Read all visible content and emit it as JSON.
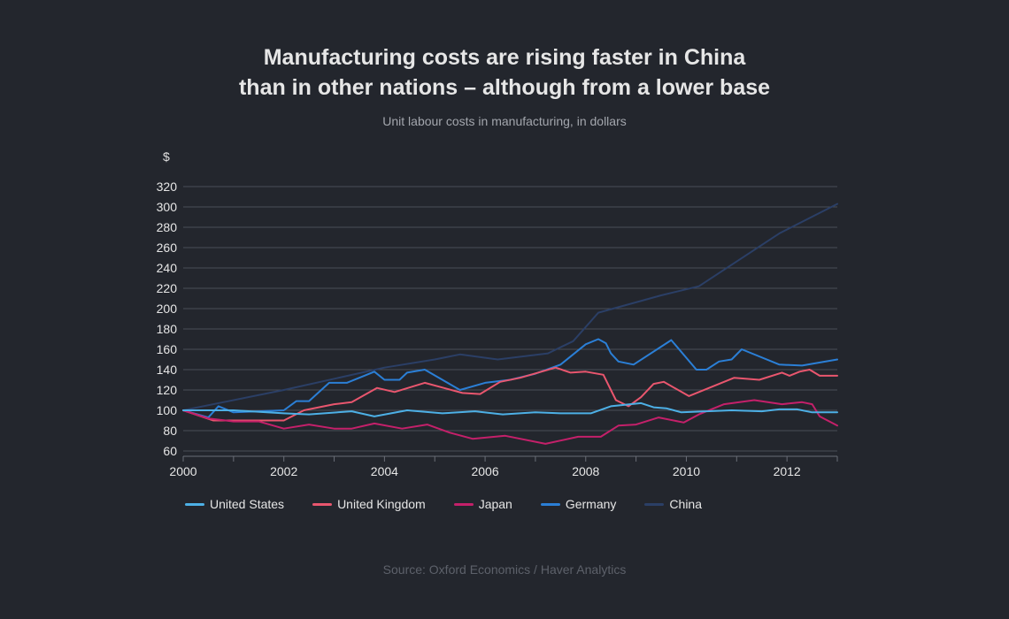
{
  "chart_data": {
    "type": "line",
    "title_lines": [
      "Manufacturing costs are rising faster in China",
      "than in other nations – although from a lower base"
    ],
    "subtitle": "Unit labour costs in manufacturing, in dollars",
    "ylabel": "$",
    "xlim": [
      2000,
      2013
    ],
    "ylim": [
      60,
      320
    ],
    "yticks": [
      60,
      80,
      100,
      120,
      140,
      160,
      180,
      200,
      220,
      240,
      260,
      280,
      300,
      320
    ],
    "xtick_labels": [
      "2000",
      "2002",
      "2004",
      "2006",
      "2008",
      "2010",
      "2012"
    ],
    "xtick_values": [
      2000,
      2002,
      2004,
      2006,
      2008,
      2010,
      2012
    ],
    "grid": true,
    "legend_placement": "bottom",
    "series": [
      {
        "name": "China",
        "color": "#2b3f66",
        "points": [
          [
            2000,
            100
          ],
          [
            2002,
            120
          ],
          [
            2004,
            142
          ],
          [
            2005,
            150
          ],
          [
            2005.5,
            155
          ],
          [
            2006.25,
            150
          ],
          [
            2007.25,
            156
          ],
          [
            2007.75,
            168
          ],
          [
            2008.25,
            196
          ],
          [
            2009.5,
            213
          ],
          [
            2010.25,
            222
          ],
          [
            2011.85,
            274
          ],
          [
            2013,
            303
          ]
        ]
      },
      {
        "name": "Germany",
        "color": "#2b7fd6",
        "points": [
          [
            2000,
            100
          ],
          [
            2000.5,
            93
          ],
          [
            2000.7,
            104
          ],
          [
            2001,
            98
          ],
          [
            2001.5,
            99
          ],
          [
            2002,
            100
          ],
          [
            2002.25,
            109
          ],
          [
            2002.5,
            109
          ],
          [
            2002.9,
            127
          ],
          [
            2003.25,
            127
          ],
          [
            2003.8,
            138
          ],
          [
            2004,
            130
          ],
          [
            2004.3,
            130
          ],
          [
            2004.45,
            137
          ],
          [
            2004.8,
            140
          ],
          [
            2005.5,
            120
          ],
          [
            2006,
            127
          ],
          [
            2006.5,
            130
          ],
          [
            2007,
            136
          ],
          [
            2007.5,
            145
          ],
          [
            2008,
            165
          ],
          [
            2008.25,
            170
          ],
          [
            2008.4,
            166
          ],
          [
            2008.5,
            156
          ],
          [
            2008.65,
            148
          ],
          [
            2008.95,
            145
          ],
          [
            2009.7,
            169
          ],
          [
            2010.2,
            140
          ],
          [
            2010.4,
            140
          ],
          [
            2010.65,
            148
          ],
          [
            2010.9,
            150
          ],
          [
            2011.1,
            160
          ],
          [
            2011.85,
            145
          ],
          [
            2012.3,
            144
          ],
          [
            2013,
            150
          ]
        ]
      },
      {
        "name": "United Kingdom",
        "color": "#e9566e",
        "points": [
          [
            2000,
            100
          ],
          [
            2000.6,
            90
          ],
          [
            2001,
            90
          ],
          [
            2001.5,
            90
          ],
          [
            2002,
            90
          ],
          [
            2002.4,
            100
          ],
          [
            2003,
            106
          ],
          [
            2003.35,
            108
          ],
          [
            2003.85,
            122
          ],
          [
            2004.2,
            118
          ],
          [
            2004.8,
            127
          ],
          [
            2005.55,
            117
          ],
          [
            2005.9,
            116
          ],
          [
            2006.3,
            128
          ],
          [
            2006.7,
            132
          ],
          [
            2007.4,
            142
          ],
          [
            2007.7,
            137
          ],
          [
            2008,
            138
          ],
          [
            2008.35,
            135
          ],
          [
            2008.6,
            110
          ],
          [
            2008.85,
            104
          ],
          [
            2009.1,
            113
          ],
          [
            2009.35,
            126
          ],
          [
            2009.55,
            128
          ],
          [
            2010.05,
            114
          ],
          [
            2010.95,
            132
          ],
          [
            2011.45,
            130
          ],
          [
            2011.9,
            137
          ],
          [
            2012.05,
            134
          ],
          [
            2012.25,
            138
          ],
          [
            2012.45,
            140
          ],
          [
            2012.65,
            134
          ],
          [
            2013,
            134
          ]
        ]
      },
      {
        "name": "Japan",
        "color": "#c4206a",
        "points": [
          [
            2000,
            100
          ],
          [
            2000.5,
            92
          ],
          [
            2001,
            89
          ],
          [
            2001.5,
            89
          ],
          [
            2002,
            82
          ],
          [
            2002.5,
            86
          ],
          [
            2003,
            82
          ],
          [
            2003.35,
            82
          ],
          [
            2003.8,
            87
          ],
          [
            2004.35,
            82
          ],
          [
            2004.85,
            86
          ],
          [
            2005.3,
            78
          ],
          [
            2005.75,
            72
          ],
          [
            2006.4,
            75
          ],
          [
            2007.2,
            67
          ],
          [
            2007.85,
            74
          ],
          [
            2008.3,
            74
          ],
          [
            2008.65,
            85
          ],
          [
            2009,
            86
          ],
          [
            2009.45,
            93
          ],
          [
            2009.95,
            88
          ],
          [
            2010.25,
            96
          ],
          [
            2010.75,
            106
          ],
          [
            2011.35,
            110
          ],
          [
            2011.9,
            106
          ],
          [
            2012.3,
            108
          ],
          [
            2012.5,
            106
          ],
          [
            2012.65,
            94
          ],
          [
            2013,
            85
          ]
        ]
      },
      {
        "name": "United States",
        "color": "#4db0e6",
        "points": [
          [
            2000,
            100
          ],
          [
            2001,
            100
          ],
          [
            2002,
            97
          ],
          [
            2002.5,
            96
          ],
          [
            2003.35,
            99
          ],
          [
            2003.8,
            94
          ],
          [
            2004.45,
            100
          ],
          [
            2005.15,
            97
          ],
          [
            2005.8,
            99
          ],
          [
            2006.35,
            96
          ],
          [
            2007,
            98
          ],
          [
            2007.5,
            97
          ],
          [
            2008.1,
            97
          ],
          [
            2008.5,
            104
          ],
          [
            2009.1,
            107
          ],
          [
            2009.35,
            103
          ],
          [
            2009.6,
            102
          ],
          [
            2009.9,
            98
          ],
          [
            2010.4,
            99
          ],
          [
            2010.9,
            100
          ],
          [
            2011.5,
            99
          ],
          [
            2011.85,
            101
          ],
          [
            2012.2,
            101
          ],
          [
            2012.5,
            98
          ],
          [
            2013,
            98
          ]
        ]
      }
    ],
    "legend": [
      {
        "name": "United States",
        "color": "#4db0e6"
      },
      {
        "name": "United Kingdom",
        "color": "#e9566e"
      },
      {
        "name": "Japan",
        "color": "#c4206a"
      },
      {
        "name": "Germany",
        "color": "#2b7fd6"
      },
      {
        "name": "China",
        "color": "#2b3f66"
      }
    ],
    "source": "Source: Oxford Economics / Haver Analytics"
  }
}
